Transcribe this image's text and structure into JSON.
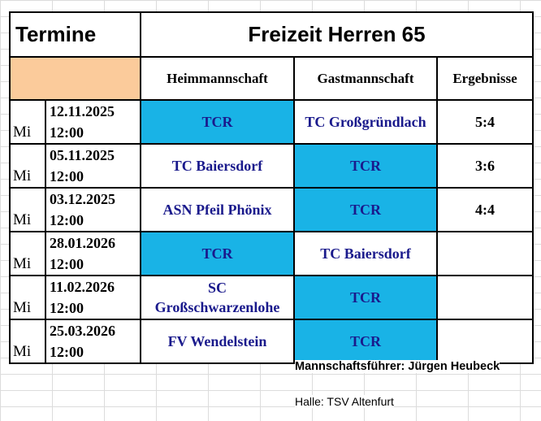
{
  "header": {
    "left_title": "Termine",
    "right_title": "Freizeit Herren 65"
  },
  "columns": {
    "home": "Heimmannschaft",
    "guest": "Gastmannschaft",
    "results": "Ergebnisse"
  },
  "rows": [
    {
      "day": "Mi",
      "date": "12.11.2025",
      "time": "12:00",
      "home": "TCR",
      "guest": "TC Großgründlach",
      "result": "5:4",
      "highlight": "home"
    },
    {
      "day": "Mi",
      "date": "05.11.2025",
      "time": "12:00",
      "home": "TC Baiersdorf",
      "guest": "TCR",
      "result": "3:6",
      "highlight": "guest"
    },
    {
      "day": "Mi",
      "date": "03.12.2025",
      "time": "12:00",
      "home": "ASN Pfeil Phönix",
      "guest": "TCR",
      "result": "4:4",
      "highlight": "guest"
    },
    {
      "day": "Mi",
      "date": "28.01.2026",
      "time": "12:00",
      "home": "TCR",
      "guest": "TC Baiersdorf",
      "result": "",
      "highlight": "home"
    },
    {
      "day": "Mi",
      "date": "11.02.2026",
      "time": "12:00",
      "home_line1": "SC",
      "home_line2": "Großschwarzenlohe",
      "guest": "TCR",
      "result": "",
      "highlight": "guest"
    },
    {
      "day": "Mi",
      "date": "25.03.2026",
      "time": "12:00",
      "home": "FV Wendelstein",
      "guest": "TCR",
      "result": "",
      "highlight": "guest"
    }
  ],
  "footer": {
    "captain": "Mannschaftsführer: Jürgen Heubeck",
    "hall": "Halle: TSV Altenfurt"
  },
  "colors": {
    "highlight_blue": "#19b3e6",
    "header_peach": "#fbcb9b",
    "team_text": "#1a1a8c"
  }
}
